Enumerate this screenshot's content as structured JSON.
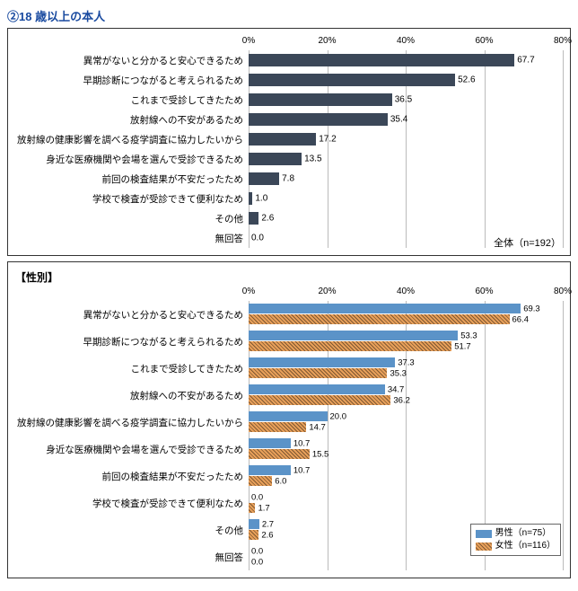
{
  "title": "②18 歳以上の本人",
  "chart1": {
    "type": "bar",
    "xmax": 80,
    "xtick_step": 20,
    "tick_labels": [
      "0%",
      "20%",
      "40%",
      "60%",
      "80%"
    ],
    "bar_color": "#3b4758",
    "grid_color": "#bbbbbb",
    "background_color": "#ffffff",
    "categories": [
      "異常がないと分かると安心できるため",
      "早期診断につながると考えられるため",
      "これまで受診してきたため",
      "放射線への不安があるため",
      "放射線の健康影響を調べる疫学調査に協力したいから",
      "身近な医療機関や会場を選んで受診できるため",
      "前回の検査結果が不安だったため",
      "学校で検査が受診できて便利なため",
      "その他",
      "無回答"
    ],
    "values": [
      67.7,
      52.6,
      36.5,
      35.4,
      17.2,
      13.5,
      7.8,
      1.0,
      2.6,
      0.0
    ],
    "footer": "全体（n=192）"
  },
  "chart2": {
    "type": "grouped-bar",
    "subtitle": "【性別】",
    "xmax": 80,
    "xtick_step": 20,
    "tick_labels": [
      "0%",
      "20%",
      "40%",
      "60%",
      "80%"
    ],
    "series": [
      {
        "name": "男性",
        "n": "（n=75）",
        "color": "#5b93c8",
        "hatch": false
      },
      {
        "name": "女性",
        "n": "（n=116）",
        "color": "#e8a05a",
        "hatch": true
      }
    ],
    "grid_color": "#bbbbbb",
    "background_color": "#ffffff",
    "categories": [
      "異常がないと分かると安心できるため",
      "早期診断につながると考えられるため",
      "これまで受診してきたため",
      "放射線への不安があるため",
      "放射線の健康影響を調べる疫学調査に協力したいから",
      "身近な医療機関や会場を選んで受診できるため",
      "前回の検査結果が不安だったため",
      "学校で検査が受診できて便利なため",
      "その他",
      "無回答"
    ],
    "values_a": [
      69.3,
      53.3,
      37.3,
      34.7,
      20.0,
      10.7,
      10.7,
      0.0,
      2.7,
      0.0
    ],
    "values_b": [
      66.4,
      51.7,
      35.3,
      36.2,
      14.7,
      15.5,
      6.0,
      1.7,
      2.6,
      0.0
    ]
  }
}
